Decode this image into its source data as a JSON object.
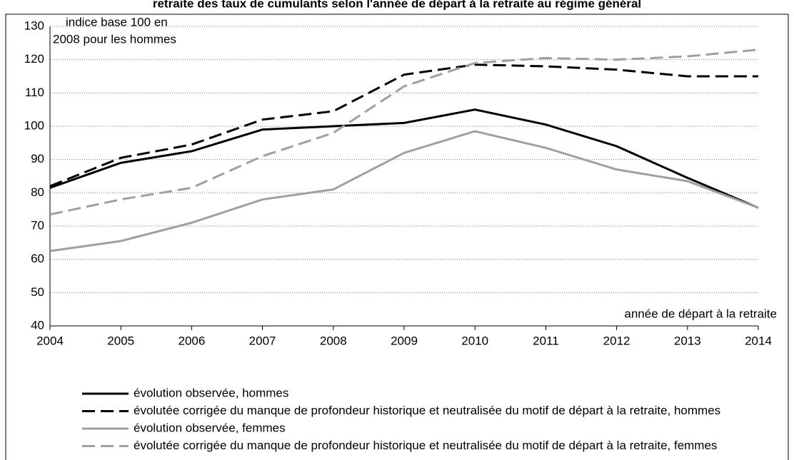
{
  "chart_data": {
    "type": "line",
    "title": "retraite des taux de cumulants selon l'année de départ à la retraite au régime général",
    "y_label": [
      "indice base 100 en",
      "2008 pour les hommes"
    ],
    "x_label": "année de départ à la retraite",
    "x": [
      2004,
      2005,
      2006,
      2007,
      2008,
      2009,
      2010,
      2011,
      2012,
      2013,
      2014
    ],
    "xlim": [
      2004,
      2014
    ],
    "xticks": [
      2004,
      2005,
      2006,
      2007,
      2008,
      2009,
      2010,
      2011,
      2012,
      2013,
      2014
    ],
    "ylim": [
      40,
      130
    ],
    "yticks": [
      40,
      50,
      60,
      70,
      80,
      90,
      100,
      110,
      120,
      130
    ],
    "grid": true,
    "series": [
      {
        "name": "évolution observée, hommes",
        "color": "#000000",
        "dashed": false,
        "values": [
          81.5,
          89,
          92.5,
          99,
          100,
          101,
          105,
          100.5,
          94,
          84.5,
          75.5
        ]
      },
      {
        "name": "évolutée corrigée du manque de profondeur historique et neutralisée du motif de départ à la retraite, hommes",
        "color": "#000000",
        "dashed": true,
        "values": [
          82,
          90.5,
          94.5,
          102,
          104.5,
          115.5,
          118.5,
          118,
          117,
          115,
          115
        ]
      },
      {
        "name": "évolution observée, femmes",
        "color": "#a0a0a0",
        "dashed": false,
        "values": [
          62.5,
          65.5,
          71,
          78,
          81,
          92,
          98.5,
          93.5,
          87,
          83.5,
          75.5
        ]
      },
      {
        "name": "évolutée corrigée du manque de profondeur historique et neutralisée du motif de départ à la retraite, femmes",
        "color": "#a0a0a0",
        "dashed": true,
        "values": [
          73.5,
          78,
          81.5,
          91,
          98,
          112,
          119,
          120.5,
          120,
          121,
          123
        ]
      }
    ]
  }
}
